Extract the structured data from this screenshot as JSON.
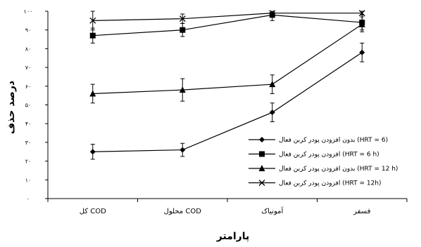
{
  "chart_data": {
    "type": "line",
    "title": "",
    "xlabel": "پارامتر",
    "ylabel": "درصد حذف",
    "categories": [
      "کل COD",
      "محلول COD",
      "آمونیاک",
      "فسفر"
    ],
    "ytick_labels": [
      "۰",
      "۱۰",
      "۲۰",
      "۳۰",
      "۴۰",
      "۵۰",
      "۶۰",
      "۷۰",
      "۸۰",
      "۹۰",
      "۱۰۰"
    ],
    "ylim": [
      0,
      100
    ],
    "grid": false,
    "legend_position": "right",
    "series": [
      {
        "name": "بدون افزودن پودر کربن فعال (HRT = 6)",
        "marker": "diamond",
        "values": [
          25,
          26,
          46,
          78
        ],
        "errors": [
          4,
          3.5,
          5,
          5
        ]
      },
      {
        "name": "افزودن پودر کربن فعال (HRT = 6 h)",
        "marker": "square",
        "values": [
          87,
          90,
          98,
          94
        ],
        "errors": [
          4,
          3.5,
          3,
          4
        ]
      },
      {
        "name": "بدون افزودن پودر کربن فعال (HRT = 12 h)",
        "marker": "triangle",
        "values": [
          56,
          58,
          61,
          93
        ],
        "errors": [
          5,
          6,
          5,
          4
        ]
      },
      {
        "name": "افزودن پودر کربن فعال (HRT = 12h)",
        "marker": "x",
        "values": [
          95,
          96,
          99,
          99
        ],
        "errors": [
          5,
          2.5,
          1.5,
          1
        ]
      }
    ]
  }
}
